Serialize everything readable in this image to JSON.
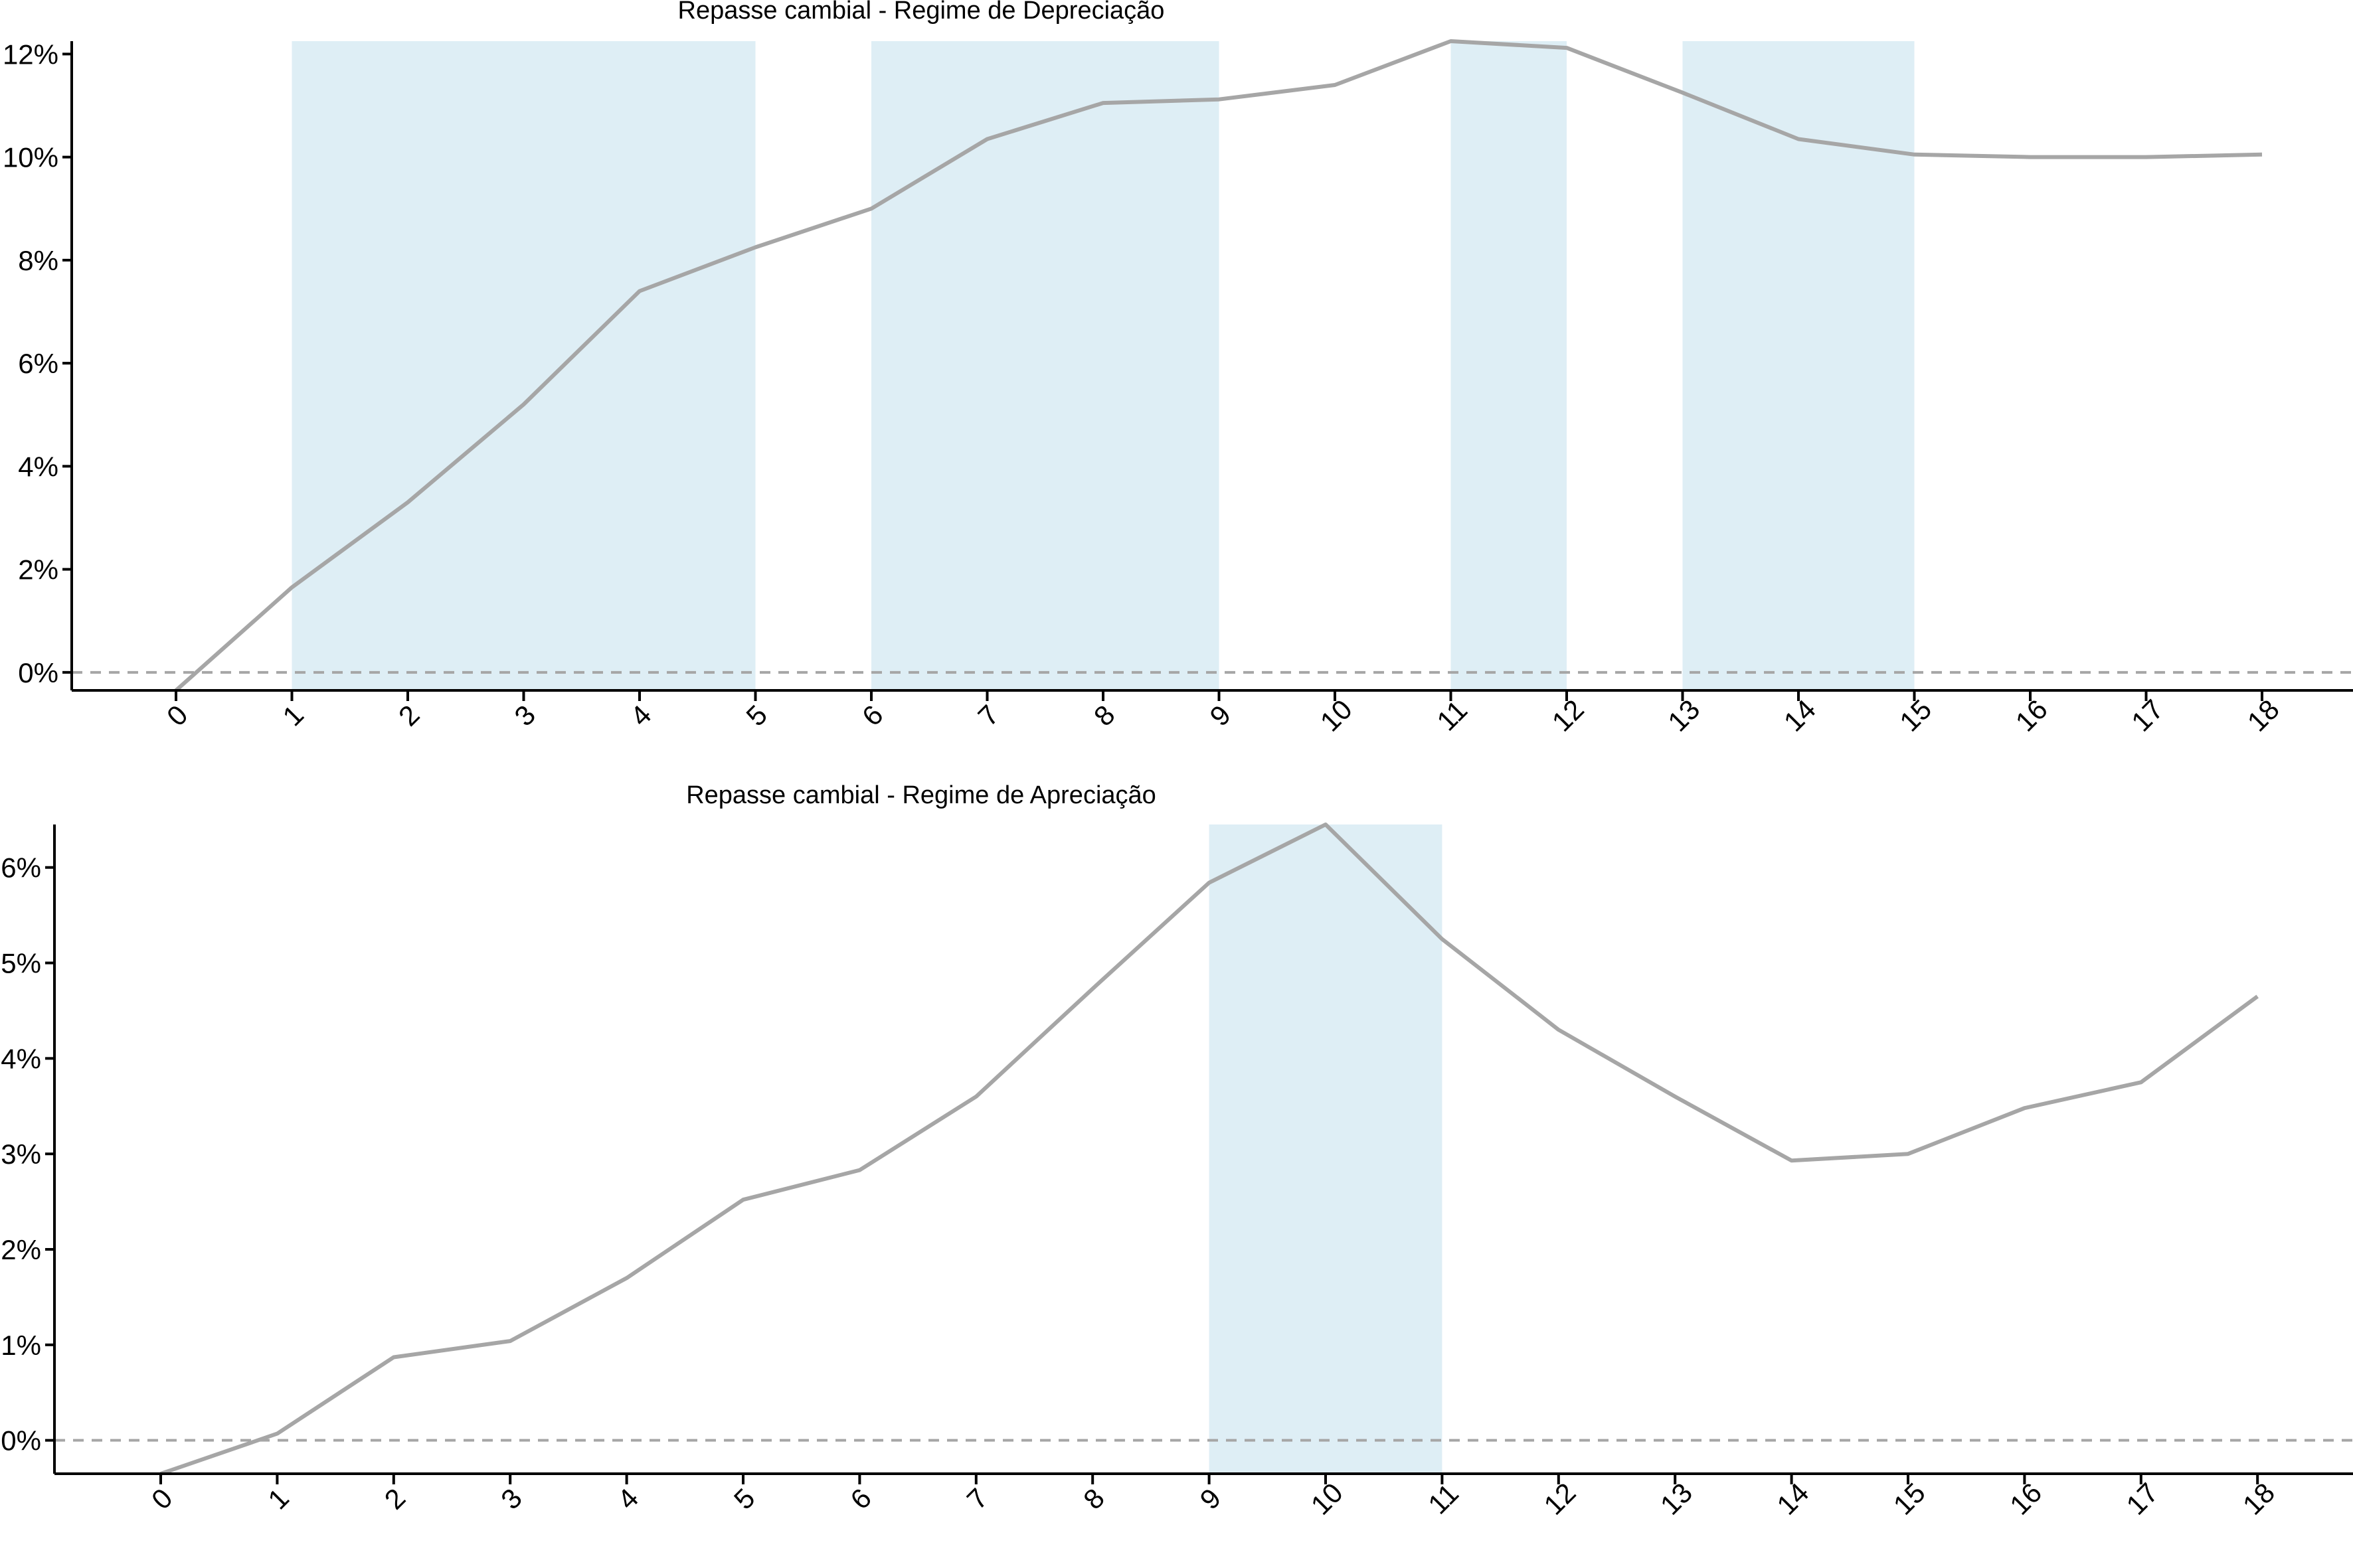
{
  "chart_data": [
    {
      "type": "line",
      "title": "Repasse cambial -  Regime de Depreciação",
      "xlabel": "",
      "ylabel": "",
      "x": [
        0,
        1,
        2,
        3,
        4,
        5,
        6,
        7,
        8,
        9,
        10,
        11,
        12,
        13,
        14,
        15,
        16,
        17,
        18
      ],
      "x_tick_labels": [
        "0",
        "1",
        "2",
        "3",
        "4",
        "5",
        "6",
        "7",
        "8",
        "9",
        "10",
        "11",
        "12",
        "13",
        "14",
        "15",
        "16",
        "17",
        "18"
      ],
      "series": [
        {
          "values": [
            -0.35,
            1.65,
            3.3,
            5.2,
            7.4,
            8.25,
            9.0,
            10.35,
            11.05,
            11.12,
            11.4,
            12.25,
            12.12,
            11.25,
            10.35,
            10.05,
            10.0,
            10.0,
            10.05
          ]
        }
      ],
      "shaded_regions": [
        [
          1,
          5
        ],
        [
          6,
          9
        ],
        [
          11,
          12
        ],
        [
          13,
          15
        ]
      ],
      "reference_line": 0,
      "ylim": [
        -0.35,
        12.25
      ],
      "y_ticks": [
        0,
        2,
        4,
        6,
        8,
        10,
        12
      ],
      "y_tick_labels": [
        "0%",
        "2%",
        "4%",
        "6%",
        "8%",
        "10%",
        "12%"
      ],
      "grid": false,
      "legend": "none",
      "colors": {
        "line": "#a6a6a6",
        "shade": "#deeef5",
        "reference": "#a6a6a6",
        "axis": "#000000"
      }
    },
    {
      "type": "line",
      "title": "Repasse cambial -  Regime de Apreciação",
      "xlabel": "",
      "ylabel": "",
      "x": [
        0,
        1,
        2,
        3,
        4,
        5,
        6,
        7,
        8,
        9,
        10,
        11,
        12,
        13,
        14,
        15,
        16,
        17,
        18
      ],
      "x_tick_labels": [
        "0",
        "1",
        "2",
        "3",
        "4",
        "5",
        "6",
        "7",
        "8",
        "9",
        "10",
        "11",
        "12",
        "13",
        "14",
        "15",
        "16",
        "17",
        "18"
      ],
      "series": [
        {
          "values": [
            -0.35,
            0.07,
            0.87,
            1.04,
            1.7,
            2.52,
            2.83,
            3.6,
            4.73,
            5.84,
            6.45,
            5.25,
            4.3,
            3.6,
            2.93,
            3.0,
            3.48,
            3.75,
            4.65
          ]
        }
      ],
      "shaded_regions": [
        [
          9,
          11
        ]
      ],
      "reference_line": 0,
      "ylim": [
        -0.35,
        6.45
      ],
      "y_ticks": [
        0,
        1,
        2,
        3,
        4,
        5,
        6
      ],
      "y_tick_labels": [
        "0%",
        "1%",
        "2%",
        "3%",
        "4%",
        "5%",
        "6%"
      ],
      "grid": false,
      "legend": "none",
      "colors": {
        "line": "#a6a6a6",
        "shade": "#deeef5",
        "reference": "#a6a6a6",
        "axis": "#000000"
      }
    }
  ]
}
